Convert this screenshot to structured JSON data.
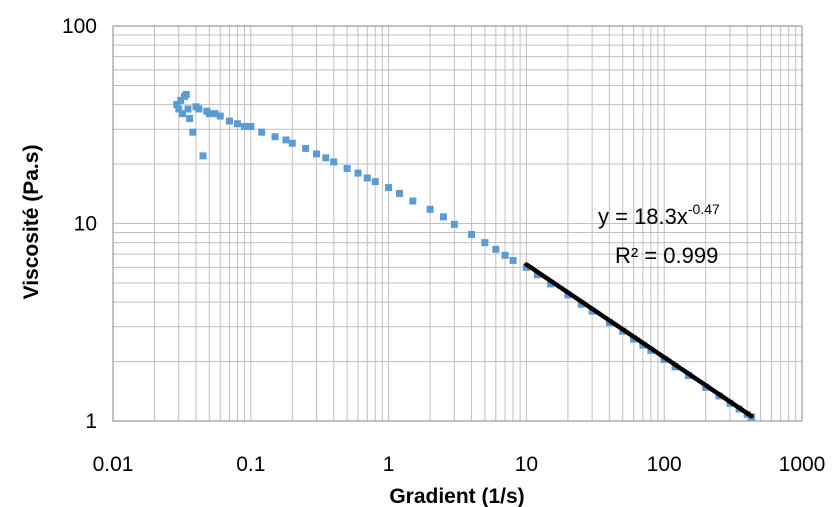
{
  "chart_data": {
    "type": "scatter",
    "xscale": "log",
    "yscale": "log",
    "xlim": [
      0.01,
      1000
    ],
    "ylim": [
      1,
      100
    ],
    "xlabel": "Gradient (1/s)",
    "ylabel": "Viscosité (Pa.s)",
    "grid": true,
    "legend": "none",
    "x_ticks": [
      "0.01",
      "0.1",
      "1",
      "10",
      "100",
      "1000"
    ],
    "y_ticks": [
      "1",
      "10",
      "100"
    ],
    "colors": {
      "points": "#5b9bd5",
      "fit": "#000000",
      "grid": "#bfbfbf",
      "axis": "#868686"
    },
    "series": [
      {
        "marker": "square",
        "x": [
          0.029,
          0.03,
          0.031,
          0.032,
          0.033,
          0.034,
          0.035,
          0.036,
          0.038,
          0.04,
          0.042,
          0.045,
          0.048,
          0.05,
          0.055,
          0.06,
          0.07,
          0.08,
          0.09,
          0.1,
          0.12,
          0.15,
          0.18,
          0.2,
          0.25,
          0.3,
          0.35,
          0.4,
          0.5,
          0.6,
          0.7,
          0.8,
          1.0,
          1.2,
          1.5,
          2.0,
          2.5,
          3.0,
          4.0,
          5.0,
          6.0,
          7.0,
          8.0,
          10,
          12,
          15,
          20,
          25,
          30,
          40,
          50,
          60,
          70,
          80,
          100,
          120,
          150,
          200,
          250,
          300,
          350,
          400,
          430
        ],
        "y": [
          40,
          38,
          42,
          36,
          44,
          45,
          38,
          34,
          29,
          39,
          38,
          22,
          37,
          36,
          36,
          35,
          33,
          32,
          31,
          31,
          29,
          27.5,
          26.5,
          25.5,
          24,
          22.5,
          21.5,
          20.5,
          19,
          18,
          17,
          16.3,
          15.2,
          14.2,
          13.0,
          11.8,
          10.8,
          9.9,
          8.8,
          8.0,
          7.4,
          6.9,
          6.5,
          6.0,
          5.5,
          4.95,
          4.35,
          3.9,
          3.6,
          3.15,
          2.85,
          2.6,
          2.42,
          2.28,
          2.05,
          1.88,
          1.7,
          1.48,
          1.34,
          1.23,
          1.15,
          1.08,
          1.05
        ]
      }
    ],
    "trendline": {
      "type": "power",
      "a": 18.3,
      "b": -0.47,
      "x_range": [
        10,
        430
      ],
      "equation_prefix": "y = 18.3x",
      "equation_exponent": "-0.47",
      "r2_label": "R² = 0.999"
    }
  }
}
